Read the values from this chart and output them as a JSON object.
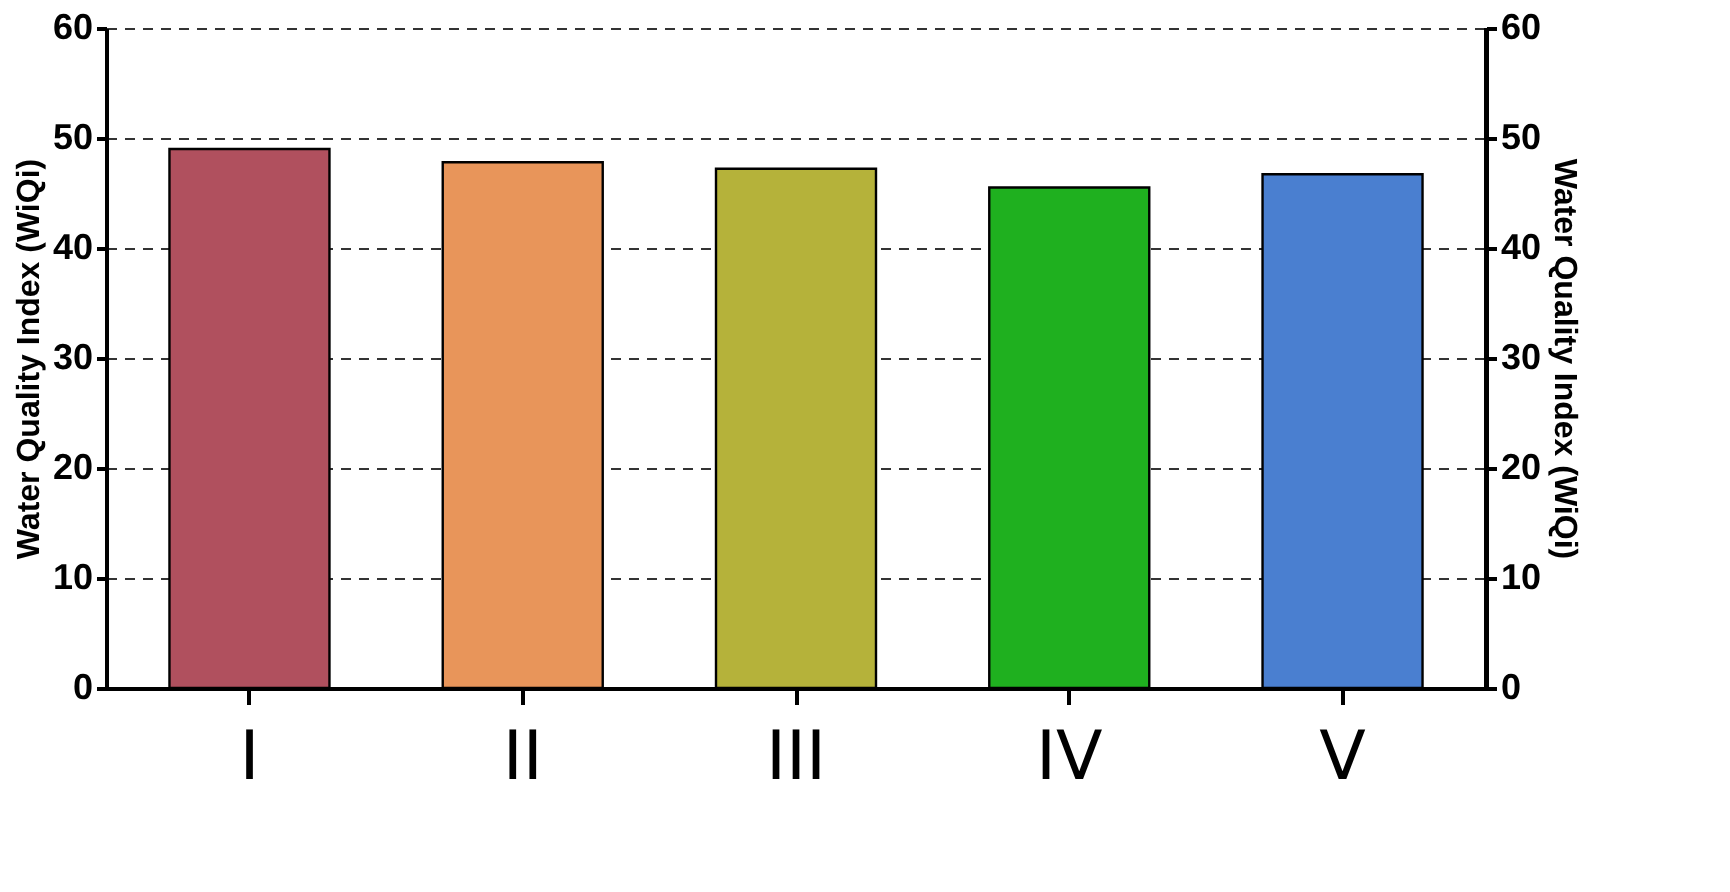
{
  "chart_data": {
    "type": "bar",
    "categories": [
      "I",
      "II",
      "III",
      "IV",
      "V"
    ],
    "values": [
      49,
      47.8,
      47.2,
      45.5,
      46.7
    ],
    "colors": [
      "#b0505e",
      "#e8955a",
      "#b5b23a",
      "#1fb01f",
      "#4a7fd0"
    ],
    "ylabel": "Water Quality Index (WiQi)",
    "y2label": "Water Quality Index (WiQi)",
    "ylim": [
      0,
      60
    ],
    "yticks": [
      0,
      10,
      20,
      30,
      40,
      50,
      60
    ],
    "y2lim": [
      0,
      60
    ],
    "y2ticks": [
      0,
      10,
      20,
      30,
      40,
      50,
      60
    ],
    "grid": "y",
    "line_style": "dashed"
  }
}
